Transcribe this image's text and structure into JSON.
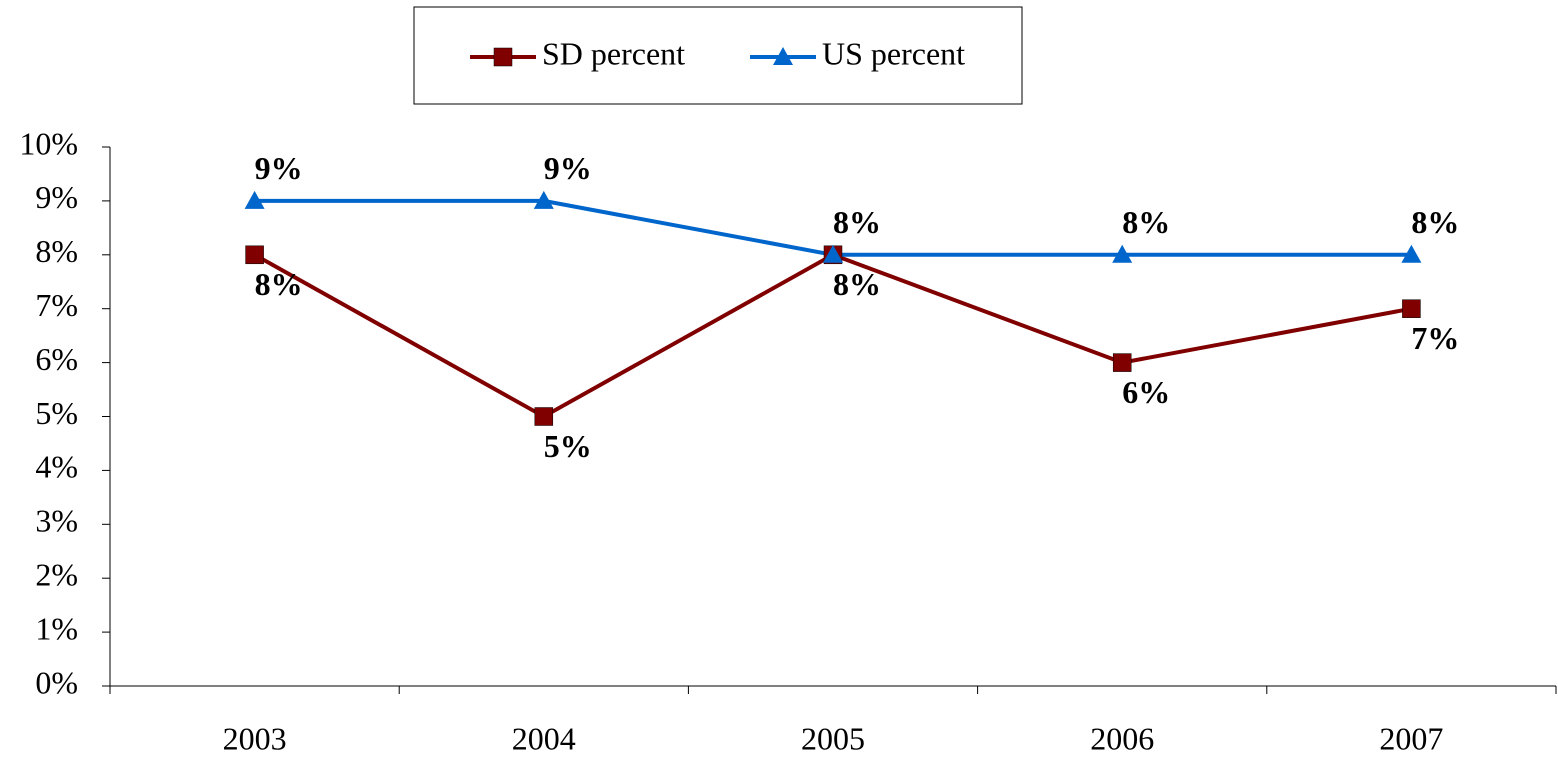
{
  "chart_data": {
    "type": "line",
    "categories": [
      "2003",
      "2004",
      "2005",
      "2006",
      "2007"
    ],
    "series": [
      {
        "name": "SD percent",
        "color": "#800000",
        "marker": "square",
        "values": [
          8,
          5,
          8,
          6,
          7
        ],
        "value_labels": [
          "8%",
          "5%",
          "8%",
          "6%",
          "7%"
        ]
      },
      {
        "name": "US percent",
        "color": "#0066cc",
        "marker": "triangle",
        "values": [
          9,
          9,
          8,
          8,
          8
        ],
        "value_labels": [
          "9%",
          "9%",
          "8%",
          "8%",
          "8%"
        ]
      }
    ],
    "ylim": [
      0,
      10
    ],
    "yticks": [
      {
        "value": 0,
        "label": "0%"
      },
      {
        "value": 1,
        "label": "1%"
      },
      {
        "value": 2,
        "label": "2%"
      },
      {
        "value": 3,
        "label": "3%"
      },
      {
        "value": 4,
        "label": "4%"
      },
      {
        "value": 5,
        "label": "5%"
      },
      {
        "value": 6,
        "label": "6%"
      },
      {
        "value": 7,
        "label": "7%"
      },
      {
        "value": 8,
        "label": "8%"
      },
      {
        "value": 9,
        "label": "9%"
      },
      {
        "value": 10,
        "label": "10%"
      }
    ],
    "grid": false,
    "legend": "top"
  }
}
